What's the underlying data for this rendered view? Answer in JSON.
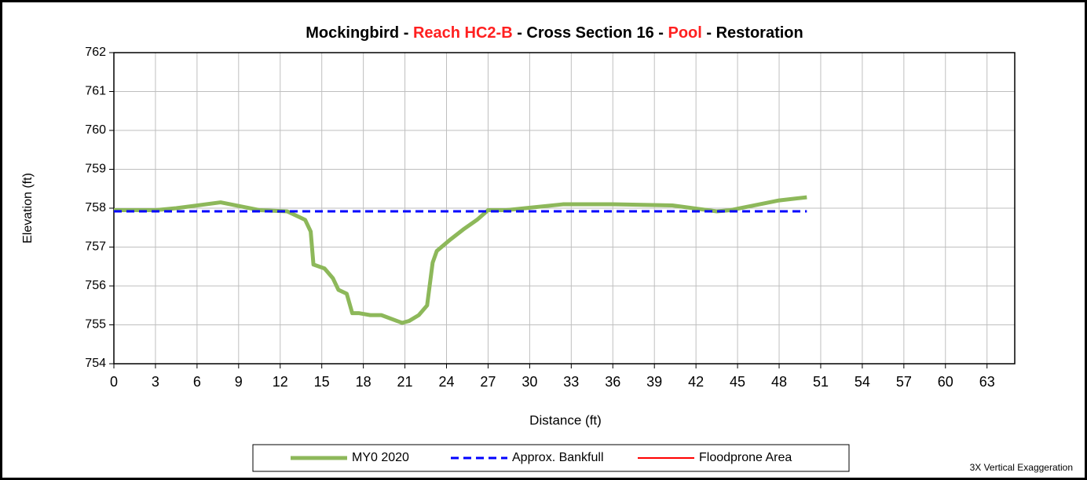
{
  "chart_data": {
    "type": "line",
    "title_parts": [
      {
        "text": "Mockingbird - ",
        "color": "#000000"
      },
      {
        "text": "Reach HC2-B",
        "color": "#ff2020"
      },
      {
        "text": " - Cross Section 16 - ",
        "color": "#000000"
      },
      {
        "text": "Pool",
        "color": "#ff2020"
      },
      {
        "text": " - Restoration",
        "color": "#000000"
      }
    ],
    "x_label": "Distance (ft)",
    "y_label": "Elevation (ft)",
    "annotation": "3X Vertical Exaggeration",
    "xlim": [
      0,
      65
    ],
    "xticks": [
      0,
      3,
      6,
      9,
      12,
      15,
      18,
      21,
      24,
      27,
      30,
      33,
      36,
      39,
      42,
      45,
      48,
      51,
      54,
      57,
      60,
      63
    ],
    "ylim": [
      754,
      762
    ],
    "yticks": [
      754,
      755,
      756,
      757,
      758,
      759,
      760,
      761,
      762
    ],
    "grid": true,
    "legend": "bottom",
    "series": [
      {
        "name": "MY0 2020",
        "color": "#8db85a",
        "dash": false,
        "width": 5,
        "x": [
          0,
          3,
          4.5,
          7.7,
          10.5,
          12.5,
          13.8,
          14.2,
          14.4,
          15.2,
          15.8,
          16.2,
          16.8,
          17.2,
          17.7,
          18.5,
          19.3,
          20.8,
          21.3,
          22,
          22.6,
          23,
          23.3,
          24.3,
          25.2,
          26.2,
          27,
          28.3,
          32.4,
          36,
          40.3,
          43.5,
          44.5,
          48,
          50
        ],
        "values": [
          757.95,
          757.95,
          758.0,
          758.15,
          757.95,
          757.92,
          757.7,
          757.4,
          756.55,
          756.45,
          756.2,
          755.9,
          755.8,
          755.3,
          755.3,
          755.25,
          755.25,
          755.05,
          755.1,
          755.25,
          755.5,
          756.6,
          756.9,
          757.2,
          757.45,
          757.7,
          757.95,
          757.95,
          758.1,
          758.1,
          758.07,
          757.92,
          757.95,
          758.2,
          758.28
        ]
      },
      {
        "name": "Approx. Bankfull",
        "color": "#0000ff",
        "dash": true,
        "width": 3,
        "x": [
          0,
          50
        ],
        "values": [
          757.92,
          757.92
        ]
      },
      {
        "name": "Floodprone Area",
        "color": "#ff0000",
        "dash": false,
        "width": 2,
        "x": [],
        "values": []
      }
    ]
  }
}
